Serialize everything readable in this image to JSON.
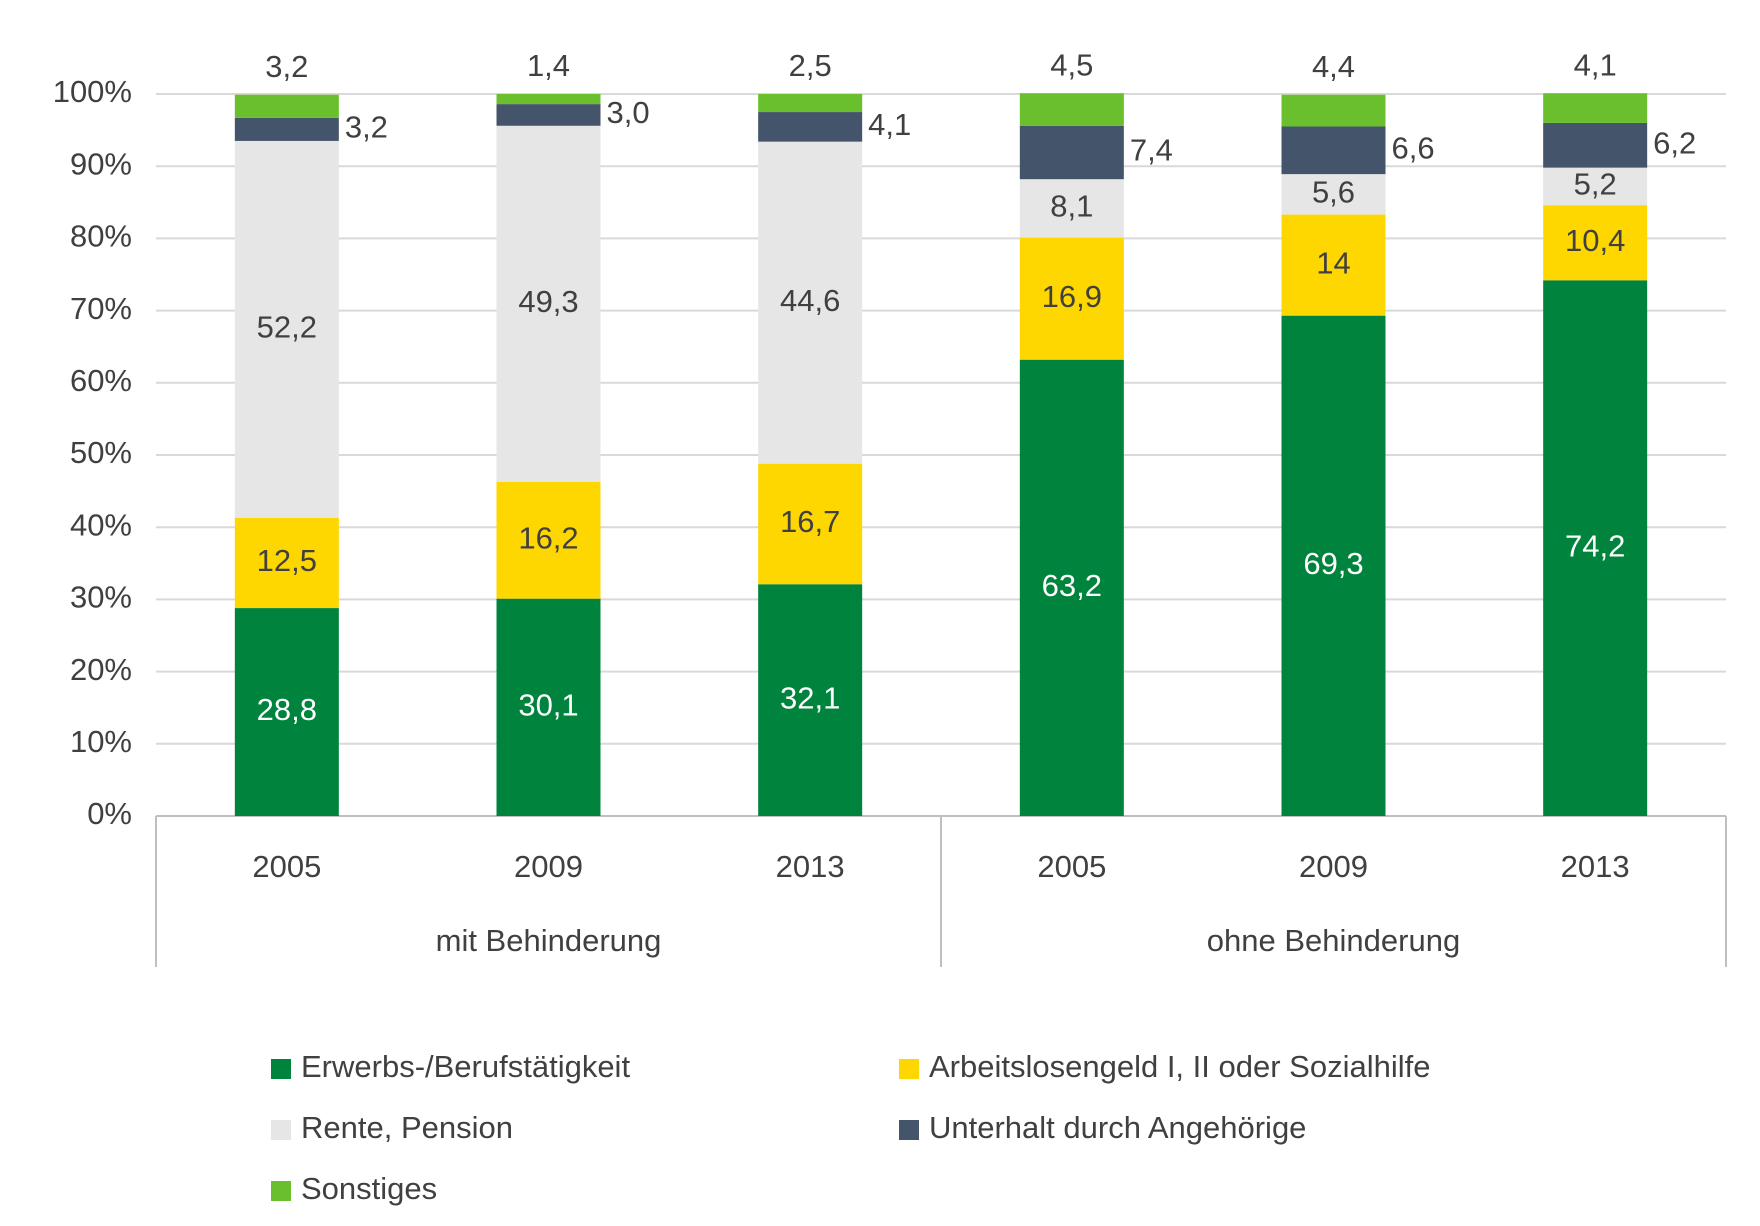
{
  "chart_data": {
    "type": "stacked_bar",
    "groups": [
      {
        "name": "mit Behinderung",
        "categories": [
          "2005",
          "2009",
          "2013"
        ]
      },
      {
        "name": "ohne Behinderung",
        "categories": [
          "2005",
          "2009",
          "2013"
        ]
      }
    ],
    "series": [
      {
        "name": "Erwerbs-/Berufstätigkeit",
        "color": "#00843d",
        "values": [
          28.8,
          30.1,
          32.1,
          63.2,
          69.3,
          74.2
        ],
        "value_labels": [
          "28,8",
          "30,1",
          "32,1",
          "63,2",
          "69,3",
          "74,2"
        ]
      },
      {
        "name": "Arbeitslosengeld I, II oder Sozialhilfe",
        "color": "#ffd700",
        "values": [
          12.5,
          16.2,
          16.7,
          16.9,
          14,
          10.4
        ],
        "value_labels": [
          "12,5",
          "16,2",
          "16,7",
          "16,9",
          "14",
          "10,4"
        ]
      },
      {
        "name": "Rente, Pension",
        "color": "#e6e6e6",
        "values": [
          52.2,
          49.3,
          44.6,
          8.1,
          5.6,
          5.2
        ],
        "value_labels": [
          "52,2",
          "49,3",
          "44,6",
          "8,1",
          "5,6",
          "5,2"
        ]
      },
      {
        "name": "Unterhalt durch Angehörige",
        "color": "#44546a",
        "values": [
          3.2,
          3.0,
          4.1,
          7.4,
          6.6,
          6.2
        ],
        "value_labels": [
          "3,2",
          "3,0",
          "4,1",
          "7,4",
          "6,6",
          "6,2"
        ]
      },
      {
        "name": "Sonstiges",
        "color": "#6abf2c",
        "values": [
          3.2,
          1.4,
          2.5,
          4.5,
          4.4,
          4.1
        ],
        "value_labels": [
          "3,2",
          "1,4",
          "2,5",
          "4,5",
          "4,4",
          "4,1"
        ]
      }
    ],
    "ylim": [
      0,
      100
    ],
    "yticks": [
      {
        "value": 0,
        "label": "0%"
      },
      {
        "value": 10,
        "label": "10%"
      },
      {
        "value": 20,
        "label": "20%"
      },
      {
        "value": 30,
        "label": "30%"
      },
      {
        "value": 40,
        "label": "40%"
      },
      {
        "value": 50,
        "label": "50%"
      },
      {
        "value": 60,
        "label": "60%"
      },
      {
        "value": 70,
        "label": "70%"
      },
      {
        "value": 80,
        "label": "80%"
      },
      {
        "value": 90,
        "label": "90%"
      },
      {
        "value": 100,
        "label": "100%"
      }
    ],
    "grid": true,
    "legend": "bottom"
  }
}
